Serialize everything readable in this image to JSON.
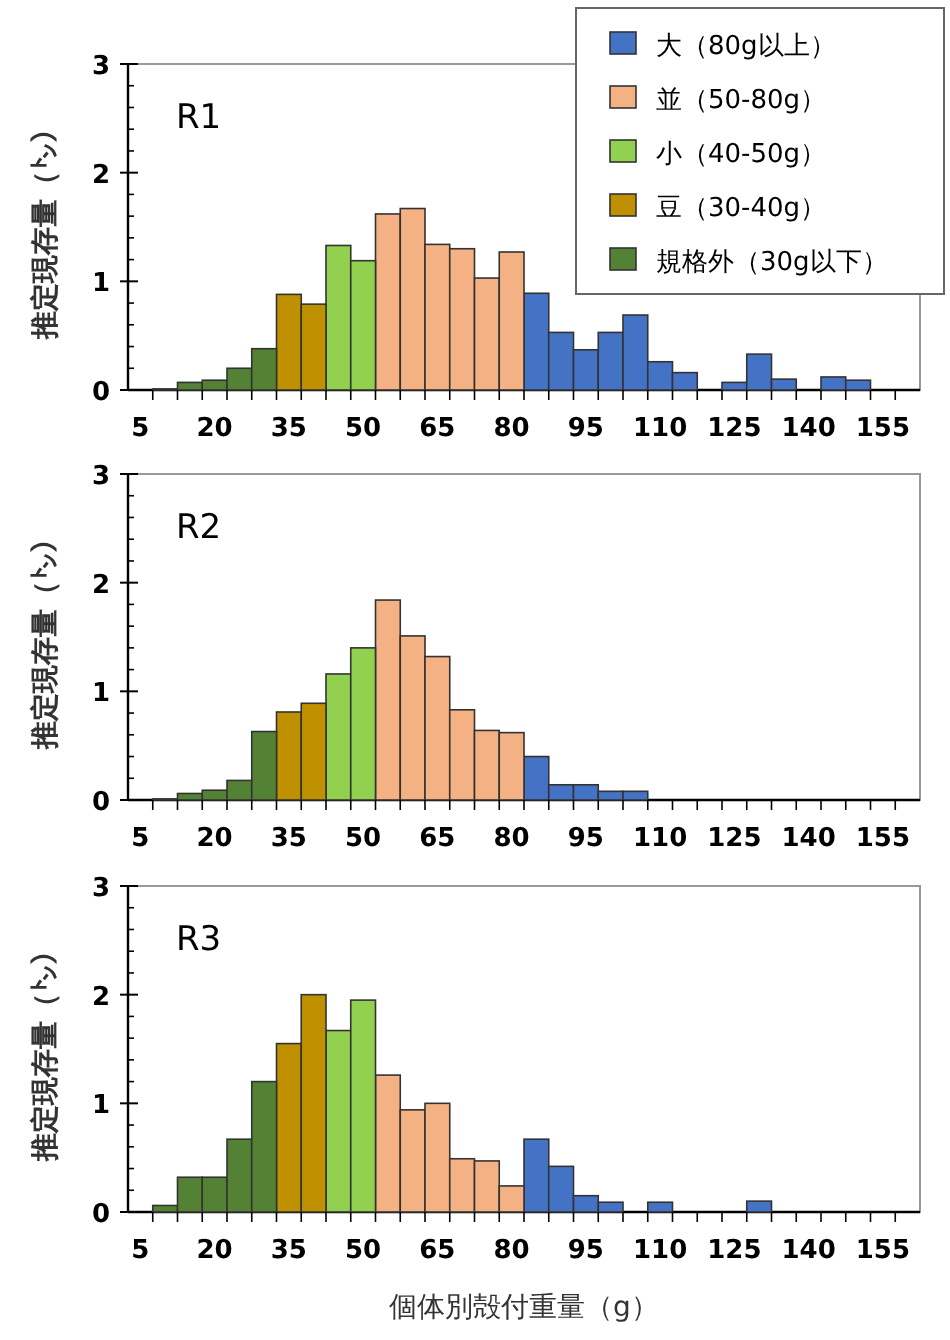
{
  "chart_data": [
    {
      "type": "bar",
      "title": "R1",
      "ylabel": "推定現存量（㌧）",
      "legend": "top right",
      "ylim": [
        0,
        3
      ],
      "yticks": [
        0,
        1,
        2,
        3
      ],
      "categories": [
        "5",
        null,
        null,
        "20",
        null,
        null,
        "35",
        null,
        null,
        "50",
        null,
        null,
        "65",
        null,
        null,
        "80",
        null,
        null,
        "95",
        null,
        null,
        "110",
        null,
        null,
        "125",
        null,
        null,
        "140",
        null,
        null,
        "155",
        null
      ],
      "series": [
        {
          "name": "大（80g以上）",
          "color": "#4472c4",
          "values": [
            null,
            null,
            null,
            null,
            null,
            null,
            null,
            null,
            null,
            null,
            null,
            null,
            null,
            null,
            null,
            null,
            0.89,
            0.53,
            0.37,
            0.53,
            0.69,
            0.26,
            0.16,
            0,
            0.07,
            0.33,
            0.1,
            0,
            0.12,
            0.09,
            0,
            0
          ]
        },
        {
          "name": "並（50-80g）",
          "color": "#f4b183",
          "values": [
            null,
            null,
            null,
            null,
            null,
            null,
            null,
            null,
            null,
            null,
            1.62,
            1.67,
            1.34,
            1.3,
            1.03,
            1.27,
            null,
            null,
            null,
            null,
            null,
            null,
            null,
            null,
            null,
            null,
            null,
            null,
            null,
            null,
            null,
            null
          ]
        },
        {
          "name": "小（40-50g）",
          "color": "#92d050",
          "values": [
            null,
            null,
            null,
            null,
            null,
            null,
            null,
            null,
            1.33,
            1.19,
            null,
            null,
            null,
            null,
            null,
            null,
            null,
            null,
            null,
            null,
            null,
            null,
            null,
            null,
            null,
            null,
            null,
            null,
            null,
            null,
            null,
            null
          ]
        },
        {
          "name": "豆（30-40g）",
          "color": "#bf9000",
          "values": [
            null,
            null,
            null,
            null,
            null,
            null,
            0.88,
            0.79,
            null,
            null,
            null,
            null,
            null,
            null,
            null,
            null,
            null,
            null,
            null,
            null,
            null,
            null,
            null,
            null,
            null,
            null,
            null,
            null,
            null,
            null,
            null,
            null
          ]
        },
        {
          "name": "規格外（30g以下）",
          "color": "#548235",
          "values": [
            0,
            0.01,
            0.07,
            0.09,
            0.2,
            0.38,
            null,
            null,
            null,
            null,
            null,
            null,
            null,
            null,
            null,
            null,
            null,
            null,
            null,
            null,
            null,
            null,
            null,
            null,
            null,
            null,
            null,
            null,
            null,
            null,
            null,
            null
          ]
        }
      ]
    },
    {
      "type": "bar",
      "title": "R2",
      "ylabel": "推定現存量（㌧）",
      "ylim": [
        0,
        3
      ],
      "yticks": [
        0,
        1,
        2,
        3
      ],
      "categories": [
        "5",
        null,
        null,
        "20",
        null,
        null,
        "35",
        null,
        null,
        "50",
        null,
        null,
        "65",
        null,
        null,
        "80",
        null,
        null,
        "95",
        null,
        null,
        "110",
        null,
        null,
        "125",
        null,
        null,
        "140",
        null,
        null,
        "155",
        null
      ],
      "series": [
        {
          "color": "#4472c4",
          "values": [
            null,
            null,
            null,
            null,
            null,
            null,
            null,
            null,
            null,
            null,
            null,
            null,
            null,
            null,
            null,
            null,
            0.4,
            0.14,
            0.14,
            0.08,
            0.08,
            0,
            0,
            0,
            0,
            0,
            0,
            0,
            0,
            0,
            0,
            0
          ]
        },
        {
          "color": "#f4b183",
          "values": [
            null,
            null,
            null,
            null,
            null,
            null,
            null,
            null,
            null,
            null,
            1.84,
            1.51,
            1.32,
            0.83,
            0.64,
            0.62,
            null,
            null,
            null,
            null,
            null,
            null,
            null,
            null,
            null,
            null,
            null,
            null,
            null,
            null,
            null,
            null
          ]
        },
        {
          "color": "#92d050",
          "values": [
            null,
            null,
            null,
            null,
            null,
            null,
            null,
            null,
            1.16,
            1.4,
            null,
            null,
            null,
            null,
            null,
            null,
            null,
            null,
            null,
            null,
            null,
            null,
            null,
            null,
            null,
            null,
            null,
            null,
            null,
            null,
            null,
            null
          ]
        },
        {
          "color": "#bf9000",
          "values": [
            null,
            null,
            null,
            null,
            null,
            null,
            0.81,
            0.89,
            null,
            null,
            null,
            null,
            null,
            null,
            null,
            null,
            null,
            null,
            null,
            null,
            null,
            null,
            null,
            null,
            null,
            null,
            null,
            null,
            null,
            null,
            null,
            null
          ]
        },
        {
          "color": "#548235",
          "values": [
            0,
            0.01,
            0.06,
            0.09,
            0.18,
            0.63,
            null,
            null,
            null,
            null,
            null,
            null,
            null,
            null,
            null,
            null,
            null,
            null,
            null,
            null,
            null,
            null,
            null,
            null,
            null,
            null,
            null,
            null,
            null,
            null,
            null,
            null
          ]
        }
      ]
    },
    {
      "type": "bar",
      "title": "R3",
      "ylabel": "推定現存量（㌧）",
      "xlabel": "個体別殻付重量（g）",
      "ylim": [
        0,
        3
      ],
      "yticks": [
        0,
        1,
        2,
        3
      ],
      "categories": [
        "5",
        null,
        null,
        "20",
        null,
        null,
        "35",
        null,
        null,
        "50",
        null,
        null,
        "65",
        null,
        null,
        "80",
        null,
        null,
        "95",
        null,
        null,
        "110",
        null,
        null,
        "125",
        null,
        null,
        "140",
        null,
        null,
        "155",
        null
      ],
      "series": [
        {
          "color": "#4472c4",
          "values": [
            null,
            null,
            null,
            null,
            null,
            null,
            null,
            null,
            null,
            null,
            null,
            null,
            null,
            null,
            null,
            null,
            0.67,
            0.42,
            0.15,
            0.09,
            0,
            0.09,
            0,
            0,
            0,
            0.1,
            0,
            0,
            0,
            0,
            0,
            0
          ]
        },
        {
          "color": "#f4b183",
          "values": [
            null,
            null,
            null,
            null,
            null,
            null,
            null,
            null,
            null,
            null,
            1.26,
            0.94,
            1.0,
            0.49,
            0.47,
            0.24,
            null,
            null,
            null,
            null,
            null,
            null,
            null,
            null,
            null,
            null,
            null,
            null,
            null,
            null,
            null,
            null
          ]
        },
        {
          "color": "#92d050",
          "values": [
            null,
            null,
            null,
            null,
            null,
            null,
            null,
            null,
            1.67,
            1.95,
            null,
            null,
            null,
            null,
            null,
            null,
            null,
            null,
            null,
            null,
            null,
            null,
            null,
            null,
            null,
            null,
            null,
            null,
            null,
            null,
            null,
            null
          ]
        },
        {
          "color": "#bf9000",
          "values": [
            null,
            null,
            null,
            null,
            null,
            null,
            1.55,
            2.0,
            null,
            null,
            null,
            null,
            null,
            null,
            null,
            null,
            null,
            null,
            null,
            null,
            null,
            null,
            null,
            null,
            null,
            null,
            null,
            null,
            null,
            null,
            null,
            null
          ]
        },
        {
          "color": "#548235",
          "values": [
            0,
            0.06,
            0.32,
            0.32,
            0.67,
            1.2,
            null,
            null,
            null,
            null,
            null,
            null,
            null,
            null,
            null,
            null,
            null,
            null,
            null,
            null,
            null,
            null,
            null,
            null,
            null,
            null,
            null,
            null,
            null,
            null,
            null,
            null
          ]
        }
      ]
    }
  ]
}
